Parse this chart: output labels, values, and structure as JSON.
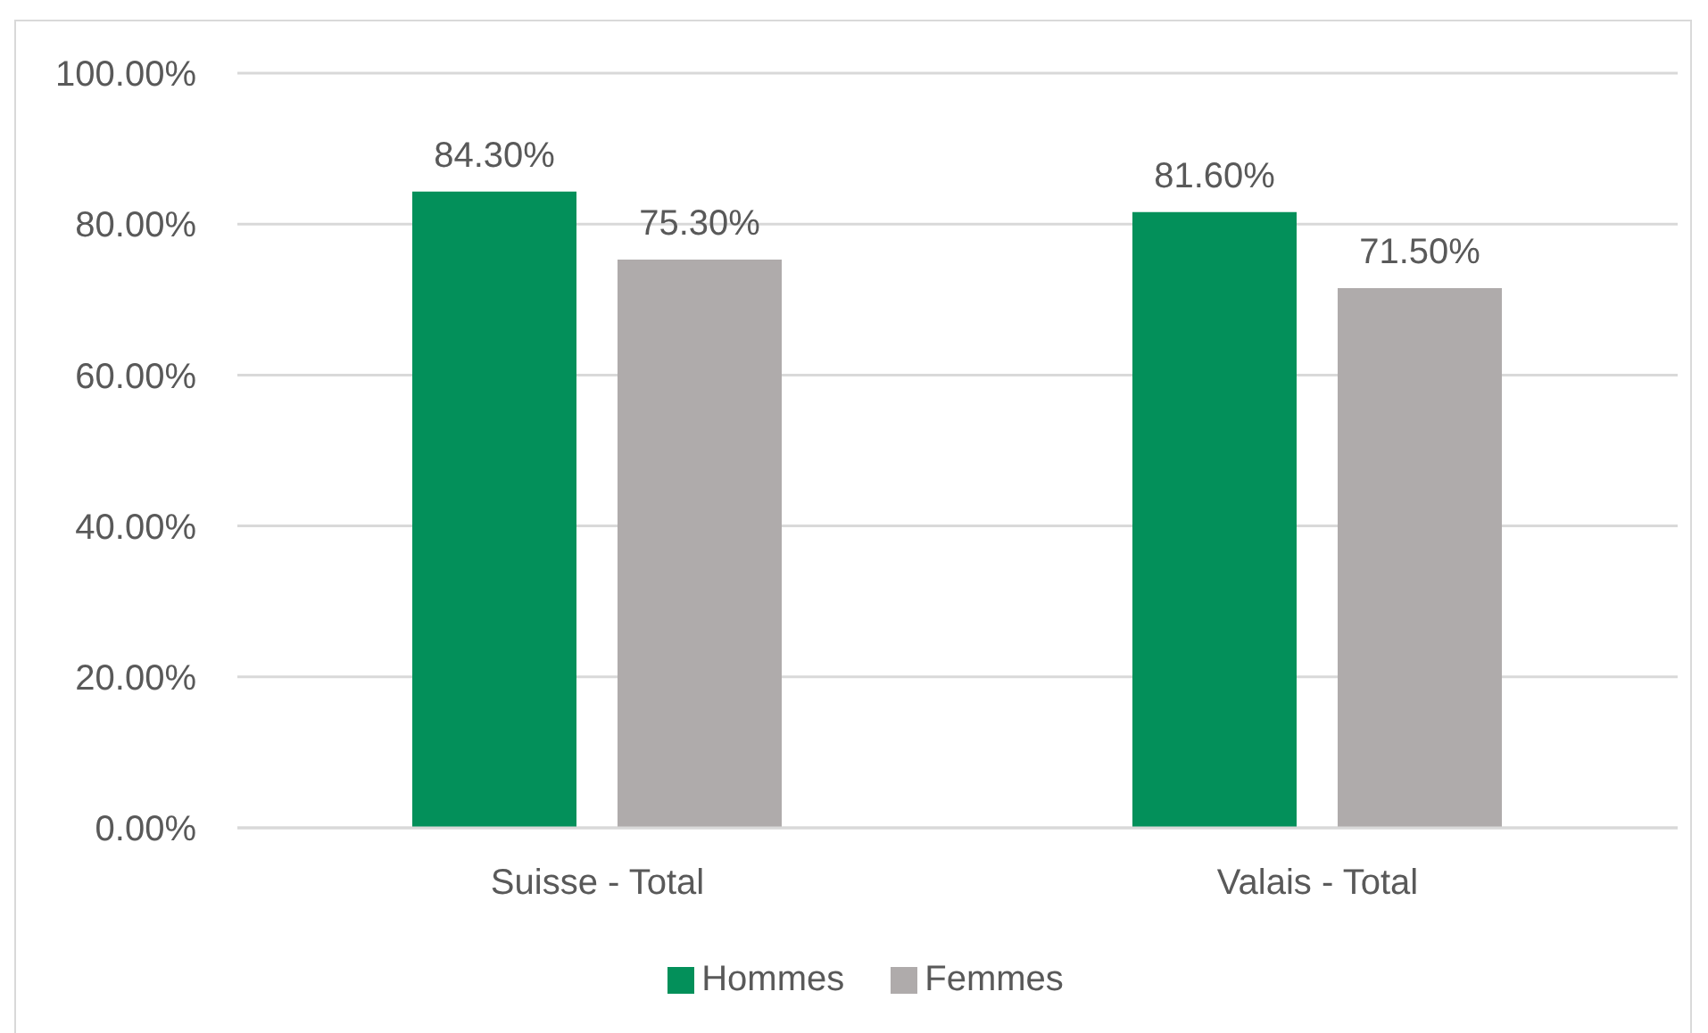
{
  "chart_data": {
    "type": "bar",
    "categories": [
      "Suisse - Total",
      "Valais - Total"
    ],
    "series": [
      {
        "name": "Hommes",
        "color": "#03905a",
        "values": [
          84.3,
          81.6
        ],
        "value_labels": [
          "84.30%",
          "81.60%"
        ]
      },
      {
        "name": "Femmes",
        "color": "#afabab",
        "values": [
          75.3,
          71.5
        ],
        "value_labels": [
          "75.30%",
          "71.50%"
        ]
      }
    ],
    "ylim": [
      0,
      100
    ],
    "yticks": [
      {
        "value": 0,
        "label": "0.00%"
      },
      {
        "value": 20,
        "label": "20.00%"
      },
      {
        "value": 40,
        "label": "40.00%"
      },
      {
        "value": 60,
        "label": "60.00%"
      },
      {
        "value": 80,
        "label": "80.00%"
      },
      {
        "value": 100,
        "label": "100.00%"
      }
    ],
    "grid": "y",
    "legend": "bottom"
  }
}
